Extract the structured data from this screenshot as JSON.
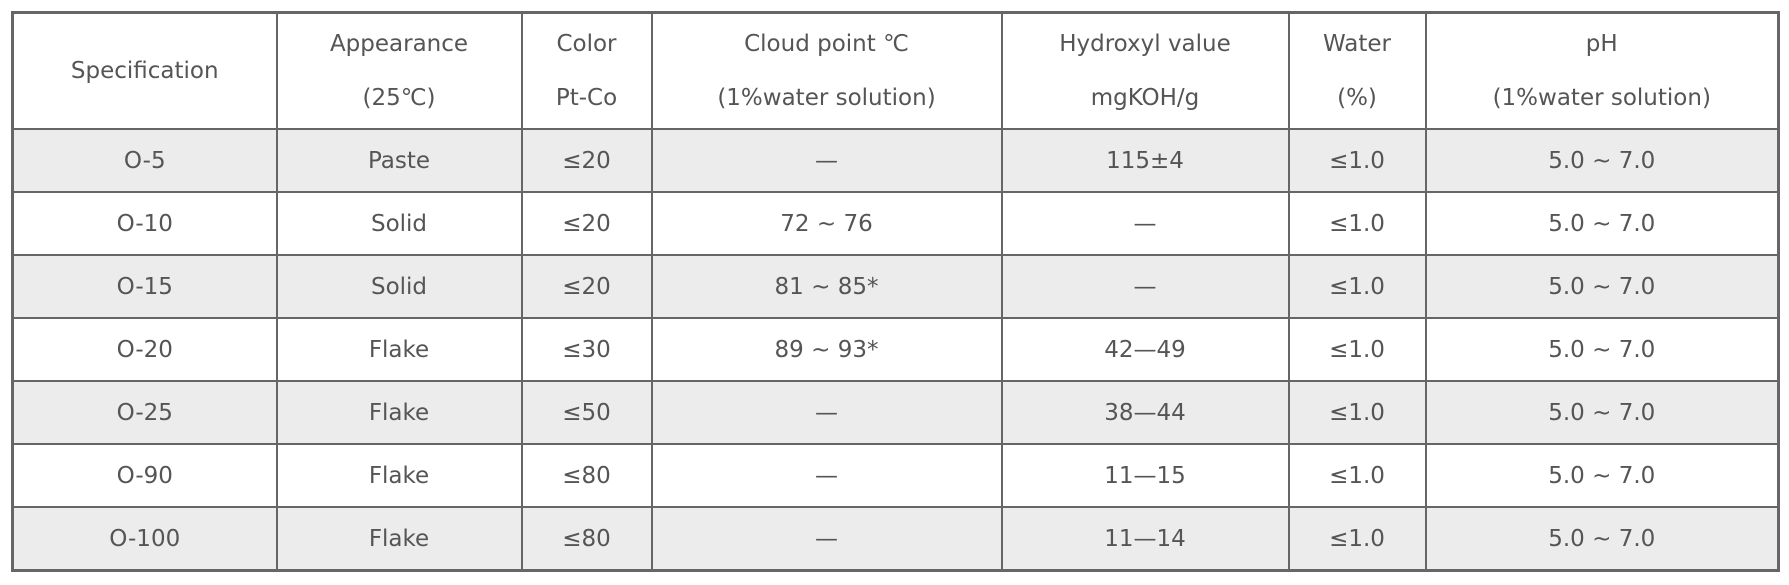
{
  "table": {
    "header": [
      [
        "Specification"
      ],
      [
        "Appearance",
        "(25℃)"
      ],
      [
        "Color",
        "Pt-Co"
      ],
      [
        "Cloud point ℃",
        "(1%water solution)"
      ],
      [
        "Hydroxyl value",
        "mgKOH/g"
      ],
      [
        "Water",
        "(%)"
      ],
      [
        "pH",
        "(1%water solution)"
      ]
    ],
    "rows": [
      [
        "O-5",
        "Paste",
        "≤20",
        "—",
        "115±4",
        "≤1.0",
        "5.0 ~ 7.0"
      ],
      [
        "O-10",
        "Solid",
        "≤20",
        "72 ~ 76",
        "—",
        "≤1.0",
        "5.0 ~ 7.0"
      ],
      [
        "O-15",
        "Solid",
        "≤20",
        "81 ~ 85*",
        "—",
        "≤1.0",
        "5.0 ~ 7.0"
      ],
      [
        "O-20",
        "Flake",
        "≤30",
        "89 ~ 93*",
        "42—49",
        "≤1.0",
        "5.0 ~ 7.0"
      ],
      [
        "O-25",
        "Flake",
        "≤50",
        "—",
        "38—44",
        "≤1.0",
        "5.0 ~ 7.0"
      ],
      [
        "O-90",
        "Flake",
        "≤80",
        "—",
        "11—15",
        "≤1.0",
        "5.0 ~ 7.0"
      ],
      [
        "O-100",
        "Flake",
        "≤80",
        "—",
        "11—14",
        "≤1.0",
        "5.0 ~ 7.0"
      ]
    ]
  }
}
